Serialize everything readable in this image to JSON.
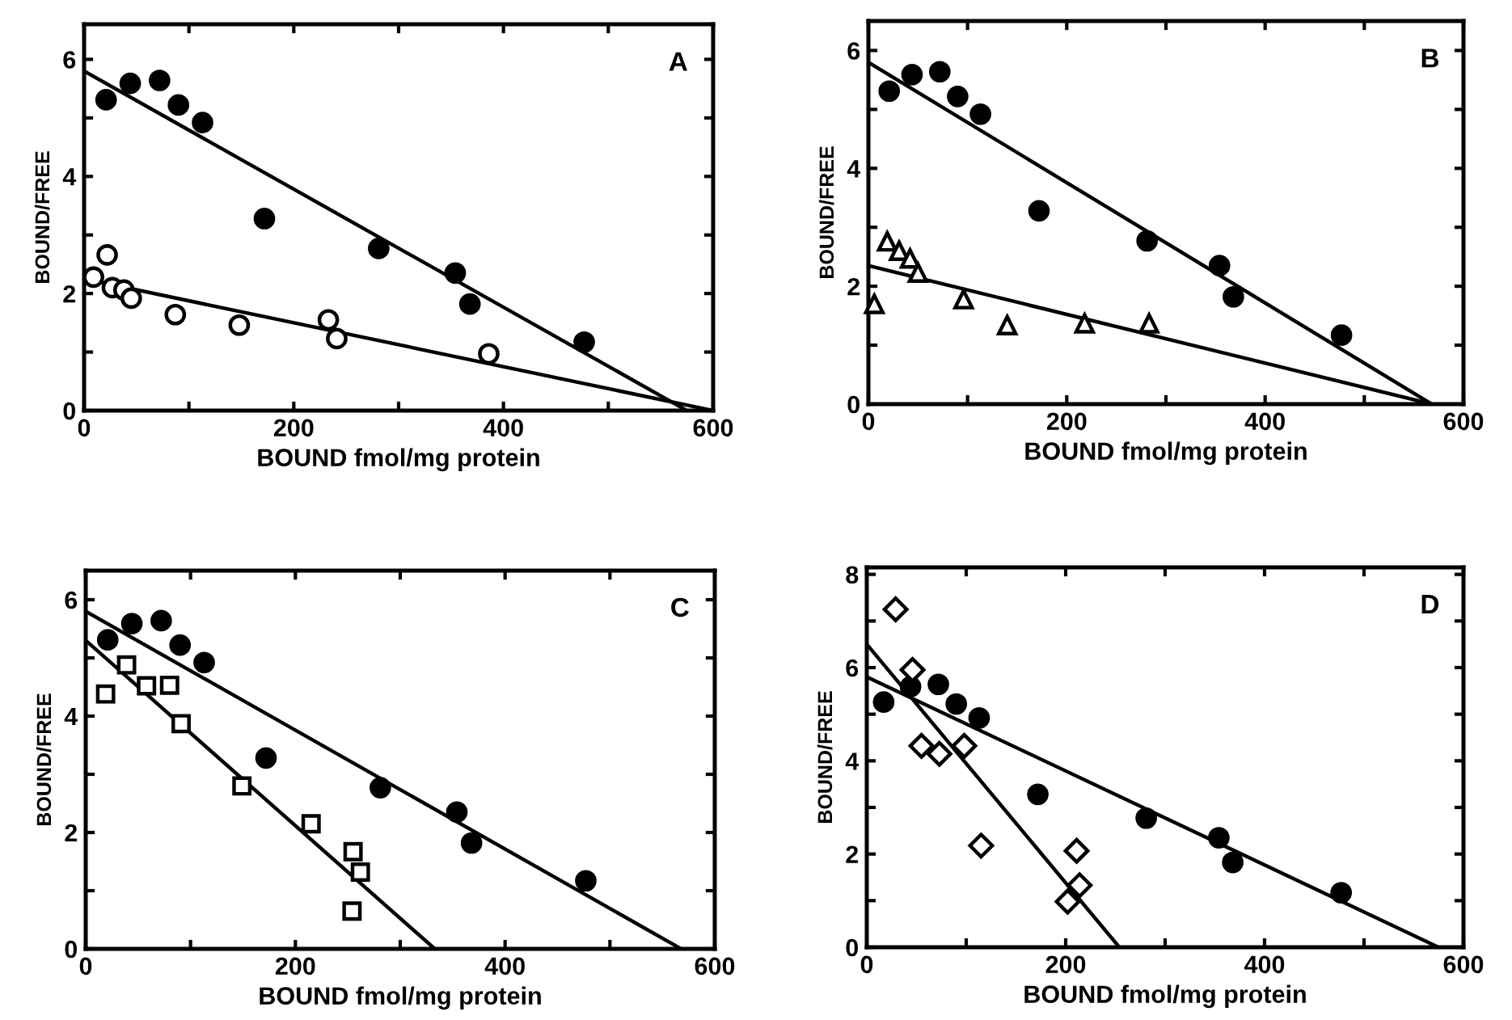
{
  "chart_data": [
    {
      "type": "scatter",
      "xlabel": "BOUND fmol/mg protein",
      "ylabel": "BOUND/FREE",
      "annotations": [
        "A"
      ],
      "xlim": [
        0,
        600
      ],
      "ylim": [
        0,
        6.6
      ],
      "xticks": [
        0,
        {
          "value": 100,
          "label": null
        },
        200,
        {
          "value": 300,
          "label": null
        },
        400,
        {
          "value": 500,
          "label": null
        },
        600
      ],
      "yticks": [
        0,
        {
          "value": 1,
          "label": null
        },
        2,
        {
          "value": 3,
          "label": null
        },
        4,
        {
          "value": 5,
          "label": null
        },
        6
      ],
      "grid": false,
      "legend": false,
      "series": [
        {
          "type": "scatter",
          "marker": "circle",
          "color": "#000000",
          "x": [
            21,
            44,
            72,
            90,
            113,
            172,
            281,
            354,
            368,
            477
          ],
          "values": [
            5.31,
            5.59,
            5.64,
            5.22,
            4.92,
            3.28,
            2.77,
            2.35,
            1.82,
            1.17
          ]
        },
        {
          "type": "scatter",
          "marker": "circle",
          "color": "#ffffff",
          "x": [
            9,
            22,
            27,
            38,
            45,
            87,
            148,
            233,
            241,
            386
          ],
          "values": [
            2.28,
            2.66,
            2.1,
            2.06,
            1.92,
            1.64,
            1.46,
            1.55,
            1.23,
            0.97
          ]
        },
        {
          "type": "line",
          "color": "#000000",
          "x": [
            0,
            575
          ],
          "values": [
            5.8,
            0
          ]
        },
        {
          "type": "line",
          "color": "#000000",
          "x": [
            0,
            600
          ],
          "values": [
            2.25,
            0
          ]
        }
      ]
    },
    {
      "type": "scatter",
      "xlabel": "BOUND fmol/mg protein",
      "ylabel": "BOUND/FREE",
      "annotations": [
        "B"
      ],
      "xlim": [
        0,
        600
      ],
      "ylim": [
        0,
        6.5
      ],
      "xticks": [
        0,
        {
          "value": 100,
          "label": null
        },
        200,
        {
          "value": 300,
          "label": null
        },
        400,
        {
          "value": 500,
          "label": null
        },
        600
      ],
      "yticks": [
        0,
        {
          "value": 1,
          "label": null
        },
        2,
        {
          "value": 3,
          "label": null
        },
        4,
        {
          "value": 5,
          "label": null
        },
        6
      ],
      "grid": false,
      "legend": false,
      "series": [
        {
          "type": "scatter",
          "marker": "circle",
          "color": "#000000",
          "x": [
            21,
            44,
            72,
            90,
            113,
            172,
            281,
            354,
            368,
            477
          ],
          "values": [
            5.31,
            5.59,
            5.64,
            5.22,
            4.92,
            3.28,
            2.77,
            2.35,
            1.82,
            1.17
          ]
        },
        {
          "type": "scatter",
          "marker": "triangle",
          "color": "#ffffff",
          "x": [
            6,
            19,
            31,
            42,
            50,
            96,
            140,
            218,
            283
          ],
          "values": [
            1.7,
            2.76,
            2.6,
            2.47,
            2.23,
            1.78,
            1.34,
            1.37,
            1.37
          ]
        },
        {
          "type": "line",
          "color": "#000000",
          "x": [
            0,
            568
          ],
          "values": [
            5.8,
            0
          ]
        },
        {
          "type": "line",
          "color": "#000000",
          "x": [
            0,
            568
          ],
          "values": [
            2.35,
            0
          ]
        }
      ]
    },
    {
      "type": "scatter",
      "xlabel": "BOUND fmol/mg protein",
      "ylabel": "BOUND/FREE",
      "annotations": [
        "C"
      ],
      "xlim": [
        0,
        600
      ],
      "ylim": [
        0,
        6.5
      ],
      "xticks": [
        0,
        {
          "value": 100,
          "label": null
        },
        200,
        {
          "value": 300,
          "label": null
        },
        400,
        {
          "value": 500,
          "label": null
        },
        600
      ],
      "yticks": [
        0,
        {
          "value": 1,
          "label": null
        },
        2,
        {
          "value": 3,
          "label": null
        },
        4,
        {
          "value": 5,
          "label": null
        },
        6
      ],
      "grid": false,
      "legend": false,
      "series": [
        {
          "type": "scatter",
          "marker": "circle",
          "color": "#000000",
          "x": [
            21,
            44,
            72,
            90,
            113,
            172,
            281,
            354,
            368,
            477
          ],
          "values": [
            5.31,
            5.59,
            5.64,
            5.22,
            4.92,
            3.28,
            2.77,
            2.35,
            1.82,
            1.17
          ]
        },
        {
          "type": "scatter",
          "marker": "square",
          "color": "#ffffff",
          "x": [
            19,
            39,
            58,
            80,
            91,
            149,
            215,
            255,
            262,
            254
          ],
          "values": [
            4.38,
            4.88,
            4.52,
            4.53,
            3.87,
            2.8,
            2.15,
            1.67,
            1.32,
            0.65
          ]
        },
        {
          "type": "line",
          "color": "#000000",
          "x": [
            0,
            568
          ],
          "values": [
            5.8,
            0
          ]
        },
        {
          "type": "line",
          "color": "#000000",
          "x": [
            0,
            333
          ],
          "values": [
            5.3,
            0
          ]
        }
      ]
    },
    {
      "type": "scatter",
      "xlabel": "BOUND fmol/mg protein",
      "ylabel": "BOUND/FREE",
      "annotations": [
        "D"
      ],
      "xlim": [
        0,
        600
      ],
      "ylim": [
        0,
        8.15
      ],
      "xticks": [
        0,
        {
          "value": 100,
          "label": null
        },
        200,
        {
          "value": 300,
          "label": null
        },
        400,
        {
          "value": 500,
          "label": null
        },
        600
      ],
      "yticks": [
        0,
        {
          "value": 1,
          "label": null
        },
        2,
        {
          "value": 3,
          "label": null
        },
        4,
        {
          "value": 5,
          "label": null
        },
        6,
        {
          "value": 7,
          "label": null
        },
        8
      ],
      "grid": false,
      "legend": false,
      "series": [
        {
          "type": "scatter",
          "marker": "circle",
          "color": "#000000",
          "x": [
            17,
            44,
            72,
            90,
            113,
            172,
            281,
            354,
            368,
            477
          ],
          "values": [
            5.26,
            5.59,
            5.64,
            5.22,
            4.92,
            3.28,
            2.77,
            2.35,
            1.82,
            1.17
          ]
        },
        {
          "type": "scatter",
          "marker": "diamond",
          "color": "#ffffff",
          "x": [
            29,
            46,
            55,
            73,
            98,
            115,
            211,
            214,
            202
          ],
          "values": [
            7.25,
            5.95,
            4.32,
            4.15,
            4.32,
            2.18,
            2.07,
            1.33,
            0.98
          ]
        },
        {
          "type": "line",
          "color": "#000000",
          "x": [
            0,
            575
          ],
          "values": [
            5.8,
            0
          ]
        },
        {
          "type": "line",
          "color": "#000000",
          "x": [
            0,
            254
          ],
          "values": [
            6.5,
            0
          ]
        }
      ]
    }
  ]
}
